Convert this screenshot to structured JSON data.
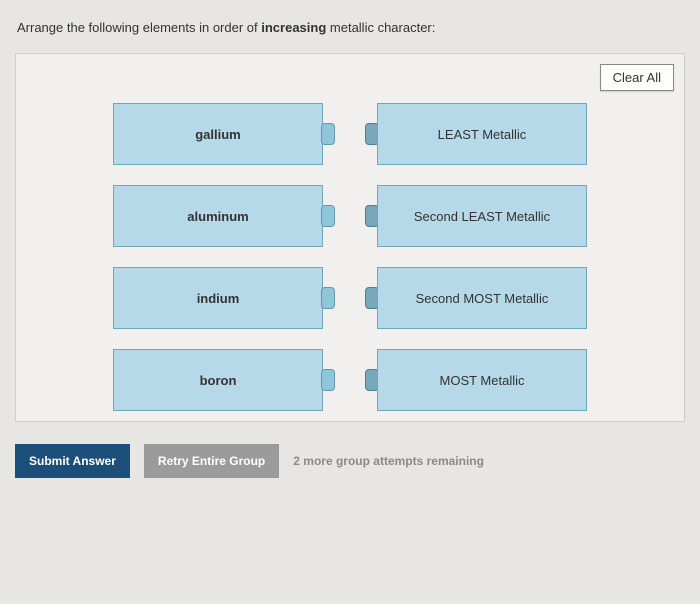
{
  "prompt": {
    "pre": "Arrange the following elements in order of ",
    "bold": "increasing",
    "post": " metallic character:"
  },
  "buttons": {
    "clear_all": "Clear All",
    "submit": "Submit Answer",
    "retry": "Retry Entire Group"
  },
  "attempts_text": "2 more group attempts remaining",
  "source_items": [
    {
      "label": "gallium"
    },
    {
      "label": "aluminum"
    },
    {
      "label": "indium"
    },
    {
      "label": "boron"
    }
  ],
  "target_slots": [
    {
      "label": "LEAST Metallic"
    },
    {
      "label": "Second LEAST Metallic"
    },
    {
      "label": "Second MOST Metallic"
    },
    {
      "label": "MOST Metallic"
    }
  ],
  "colors": {
    "card_bg": "#b5d9e8",
    "card_border": "#6fa8bd",
    "panel_bg": "#f2f0ee",
    "page_bg": "#e8e6e2",
    "submit_bg": "#1c4e7a",
    "retry_bg": "#9b9b9b"
  }
}
